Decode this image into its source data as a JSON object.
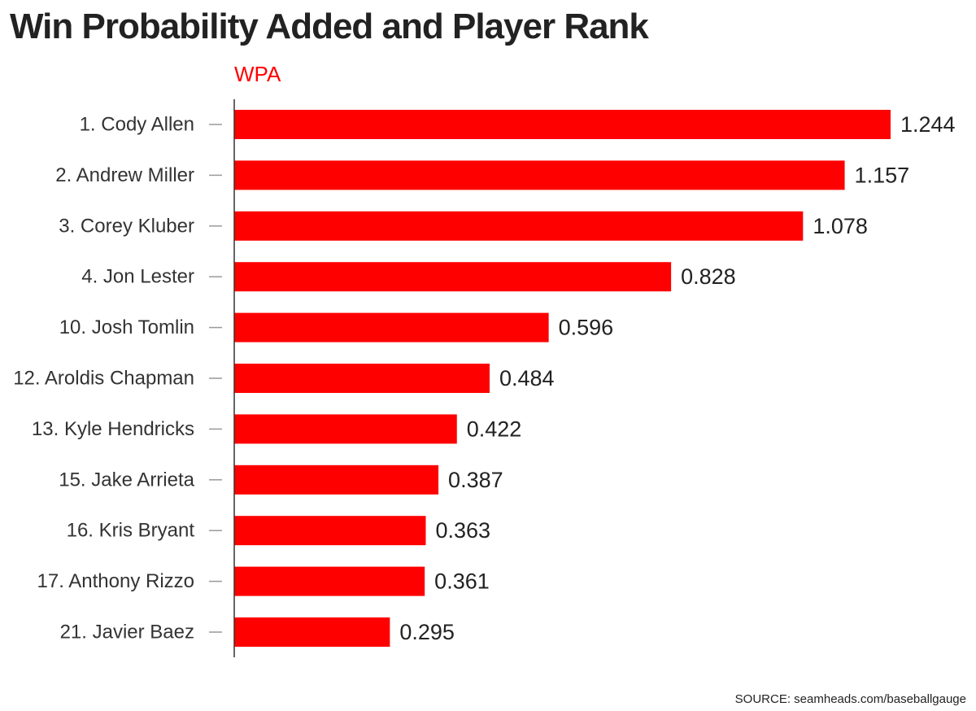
{
  "title": "Win Probability Added and Player Rank",
  "source": "SOURCE: seamheads.com/baseballgauge",
  "colors": {
    "bar": "#ff0000",
    "axis_title": "#ff0000",
    "text": "#222222",
    "axis_line": "#333333",
    "tick": "#999999"
  },
  "chart_data": {
    "type": "bar",
    "orientation": "horizontal",
    "axis_title": "WPA",
    "categories": [
      "1. Cody Allen",
      "2. Andrew Miller",
      "3. Corey Kluber",
      "4. Jon Lester",
      "10. Josh Tomlin",
      "12. Aroldis Chapman",
      "13. Kyle Hendricks",
      "15. Jake Arrieta",
      "16. Kris Bryant",
      "17. Anthony Rizzo",
      "21. Javier Baez"
    ],
    "values": [
      1.244,
      1.157,
      1.078,
      0.828,
      0.596,
      0.484,
      0.422,
      0.387,
      0.363,
      0.361,
      0.295
    ],
    "value_labels": [
      "1.244",
      "1.157",
      "1.078",
      "0.828",
      "0.596",
      "0.484",
      "0.422",
      "0.387",
      "0.363",
      "0.361",
      "0.295"
    ],
    "xlim": [
      0,
      1.244
    ],
    "grid": false,
    "legend": "none"
  }
}
